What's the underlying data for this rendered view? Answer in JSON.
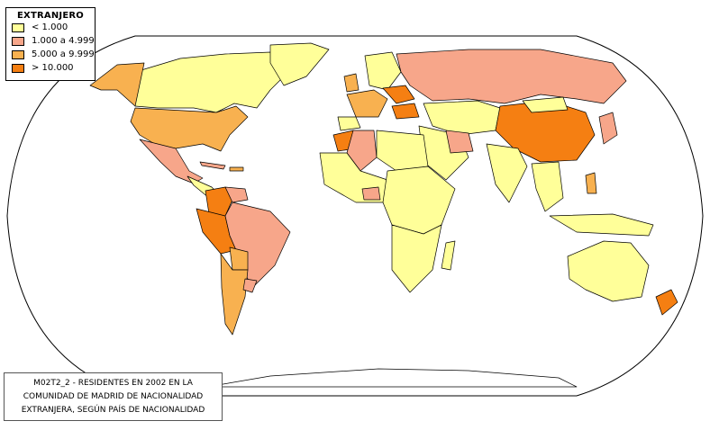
{
  "legend": {
    "title": "EXTRANJERO",
    "items": [
      {
        "label": "< 1.000",
        "color": "#ffff99"
      },
      {
        "label": "1.000 a 4.999",
        "color": "#f7a68a"
      },
      {
        "label": "5.000 a 9.999",
        "color": "#f8b150"
      },
      {
        "label": "> 10.000",
        "color": "#f57f12"
      }
    ]
  },
  "caption": {
    "lines": [
      "M02T2_2 - RESIDENTES EN 2002 EN LA",
      "COMUNIDAD DE MADRID DE NACIONALIDAD",
      "EXTRANJERA, SEGÚN PAÍS DE NACIONALIDAD"
    ]
  },
  "map": {
    "projection": "robinson",
    "ocean_color": "#ffffff",
    "border_color": "#000000",
    "categories": {
      "lt_1000": "#ffff99",
      "1000_4999": "#f7a68a",
      "5000_9999": "#f8b150",
      "gt_10000": "#f57f12"
    }
  }
}
